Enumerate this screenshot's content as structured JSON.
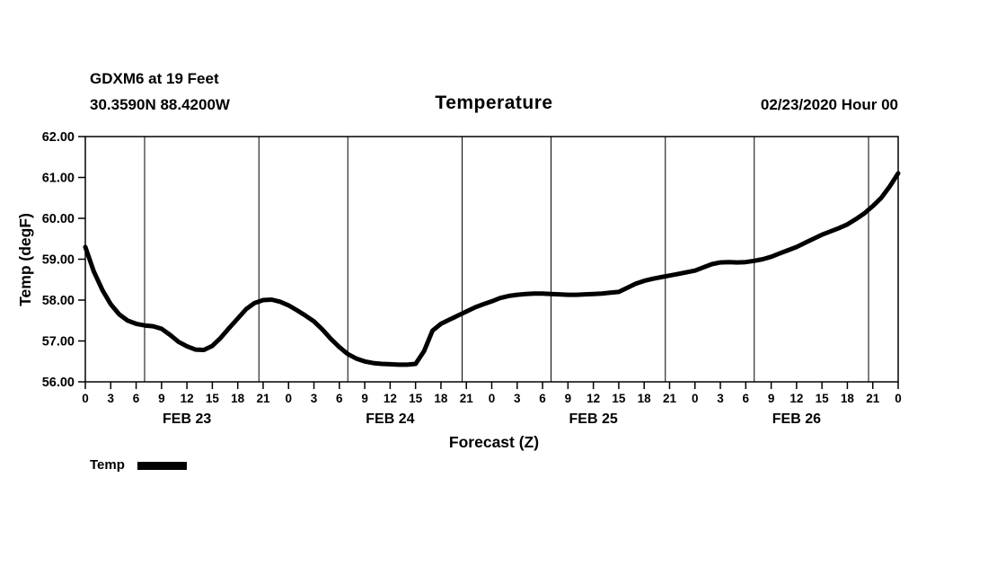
{
  "header": {
    "station_line1": "GDXM6 at 19 Feet",
    "station_line2": "30.3590N 88.4200W",
    "title": "Temperature",
    "datetime": "02/23/2020 Hour 00"
  },
  "axes": {
    "ylabel": "Temp (degF)",
    "xlabel": "Forecast (Z)"
  },
  "legend": {
    "label": "Temp",
    "color": "#000000"
  },
  "chart_data": {
    "type": "line",
    "title": "Temperature",
    "xlabel": "Forecast (Z)",
    "ylabel": "Temp (degF)",
    "ylim": [
      56.0,
      62.0
    ],
    "xlim_hours": [
      0,
      96
    ],
    "yticks": [
      "56.00",
      "57.00",
      "58.00",
      "59.00",
      "60.00",
      "61.00",
      "62.00"
    ],
    "ytick_values": [
      56,
      57,
      58,
      59,
      60,
      61,
      62
    ],
    "xtick_step_hours": 3,
    "xtick_labels_cycle": [
      "0",
      "3",
      "6",
      "9",
      "12",
      "15",
      "18",
      "21"
    ],
    "day_labels": [
      {
        "label": "FEB 23",
        "center_hour": 12
      },
      {
        "label": "FEB 24",
        "center_hour": 36
      },
      {
        "label": "FEB 25",
        "center_hour": 60
      },
      {
        "label": "FEB 26",
        "center_hour": 84
      }
    ],
    "vgrid_hours": [
      7,
      20.5,
      31,
      44.5,
      55,
      68.5,
      79,
      92.5
    ],
    "grid": "vertical-only",
    "legend_position": "bottom-left",
    "series": [
      {
        "name": "Temp",
        "color": "#000000",
        "x_start_hour": 0,
        "x_step_hours": 1,
        "values": [
          59.3,
          58.7,
          58.25,
          57.9,
          57.65,
          57.5,
          57.42,
          57.38,
          57.36,
          57.3,
          57.15,
          56.98,
          56.87,
          56.79,
          56.78,
          56.88,
          57.08,
          57.32,
          57.55,
          57.78,
          57.93,
          58.0,
          58.01,
          57.96,
          57.87,
          57.75,
          57.62,
          57.48,
          57.28,
          57.05,
          56.85,
          56.68,
          56.57,
          56.5,
          56.46,
          56.44,
          56.43,
          56.42,
          56.42,
          56.44,
          56.75,
          57.25,
          57.42,
          57.52,
          57.62,
          57.72,
          57.82,
          57.9,
          57.97,
          58.05,
          58.1,
          58.13,
          58.15,
          58.16,
          58.16,
          58.15,
          58.14,
          58.13,
          58.13,
          58.14,
          58.15,
          58.16,
          58.18,
          58.2,
          58.3,
          58.4,
          58.47,
          58.52,
          58.56,
          58.6,
          58.64,
          58.68,
          58.72,
          58.8,
          58.88,
          58.92,
          58.93,
          58.92,
          58.93,
          58.96,
          59.0,
          59.06,
          59.14,
          59.22,
          59.3,
          59.4,
          59.5,
          59.6,
          59.68,
          59.76,
          59.85,
          59.98,
          60.12,
          60.3,
          60.5,
          60.78,
          61.1
        ]
      }
    ]
  }
}
